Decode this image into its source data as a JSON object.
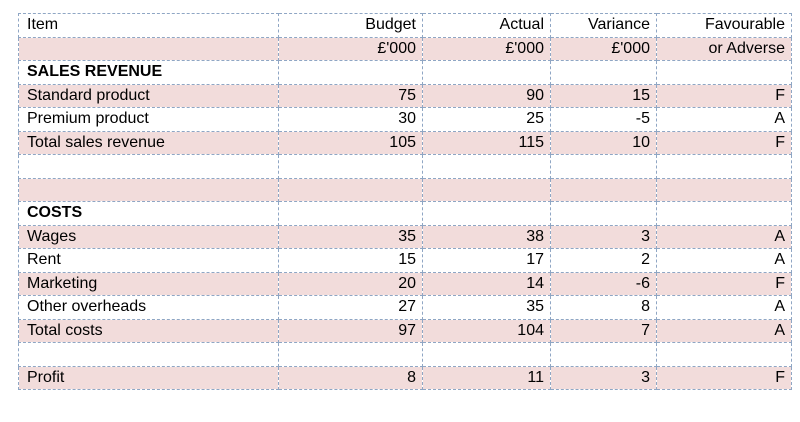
{
  "table": {
    "header": [
      "Item",
      "Budget",
      "Actual",
      "Variance",
      "Favourable"
    ],
    "units": [
      "",
      "£'000",
      "£'000",
      "£'000",
      "or Adverse"
    ],
    "rows": [
      {
        "item": "SALES REVENUE",
        "budget": "",
        "actual": "",
        "variance": "",
        "fa": "",
        "heading": true
      },
      {
        "item": "Standard product",
        "budget": "75",
        "actual": "90",
        "variance": "15",
        "fa": "F"
      },
      {
        "item": "Premium product",
        "budget": "30",
        "actual": "25",
        "variance": "-5",
        "fa": "A"
      },
      {
        "item": "Total sales revenue",
        "budget": "105",
        "actual": "115",
        "variance": "10",
        "fa": "F"
      },
      {
        "item": "",
        "budget": "",
        "actual": "",
        "variance": "",
        "fa": ""
      },
      {
        "item": "",
        "budget": "",
        "actual": "",
        "variance": "",
        "fa": ""
      },
      {
        "item": "COSTS",
        "budget": "",
        "actual": "",
        "variance": "",
        "fa": "",
        "heading": true
      },
      {
        "item": "Wages",
        "budget": "35",
        "actual": "38",
        "variance": "3",
        "fa": "A"
      },
      {
        "item": "Rent",
        "budget": "15",
        "actual": "17",
        "variance": "2",
        "fa": "A"
      },
      {
        "item": "Marketing",
        "budget": "20",
        "actual": "14",
        "variance": "-6",
        "fa": "F"
      },
      {
        "item": "Other overheads",
        "budget": "27",
        "actual": "35",
        "variance": "8",
        "fa": "A"
      },
      {
        "item": "Total costs",
        "budget": "97",
        "actual": "104",
        "variance": "7",
        "fa": "A"
      },
      {
        "item": "",
        "budget": "",
        "actual": "",
        "variance": "",
        "fa": ""
      },
      {
        "item": "Profit",
        "budget": "8",
        "actual": "11",
        "variance": "3",
        "fa": "F"
      }
    ]
  },
  "colors": {
    "band_fill": "#f2dcdb",
    "grid_line": "#8fa6c4"
  }
}
